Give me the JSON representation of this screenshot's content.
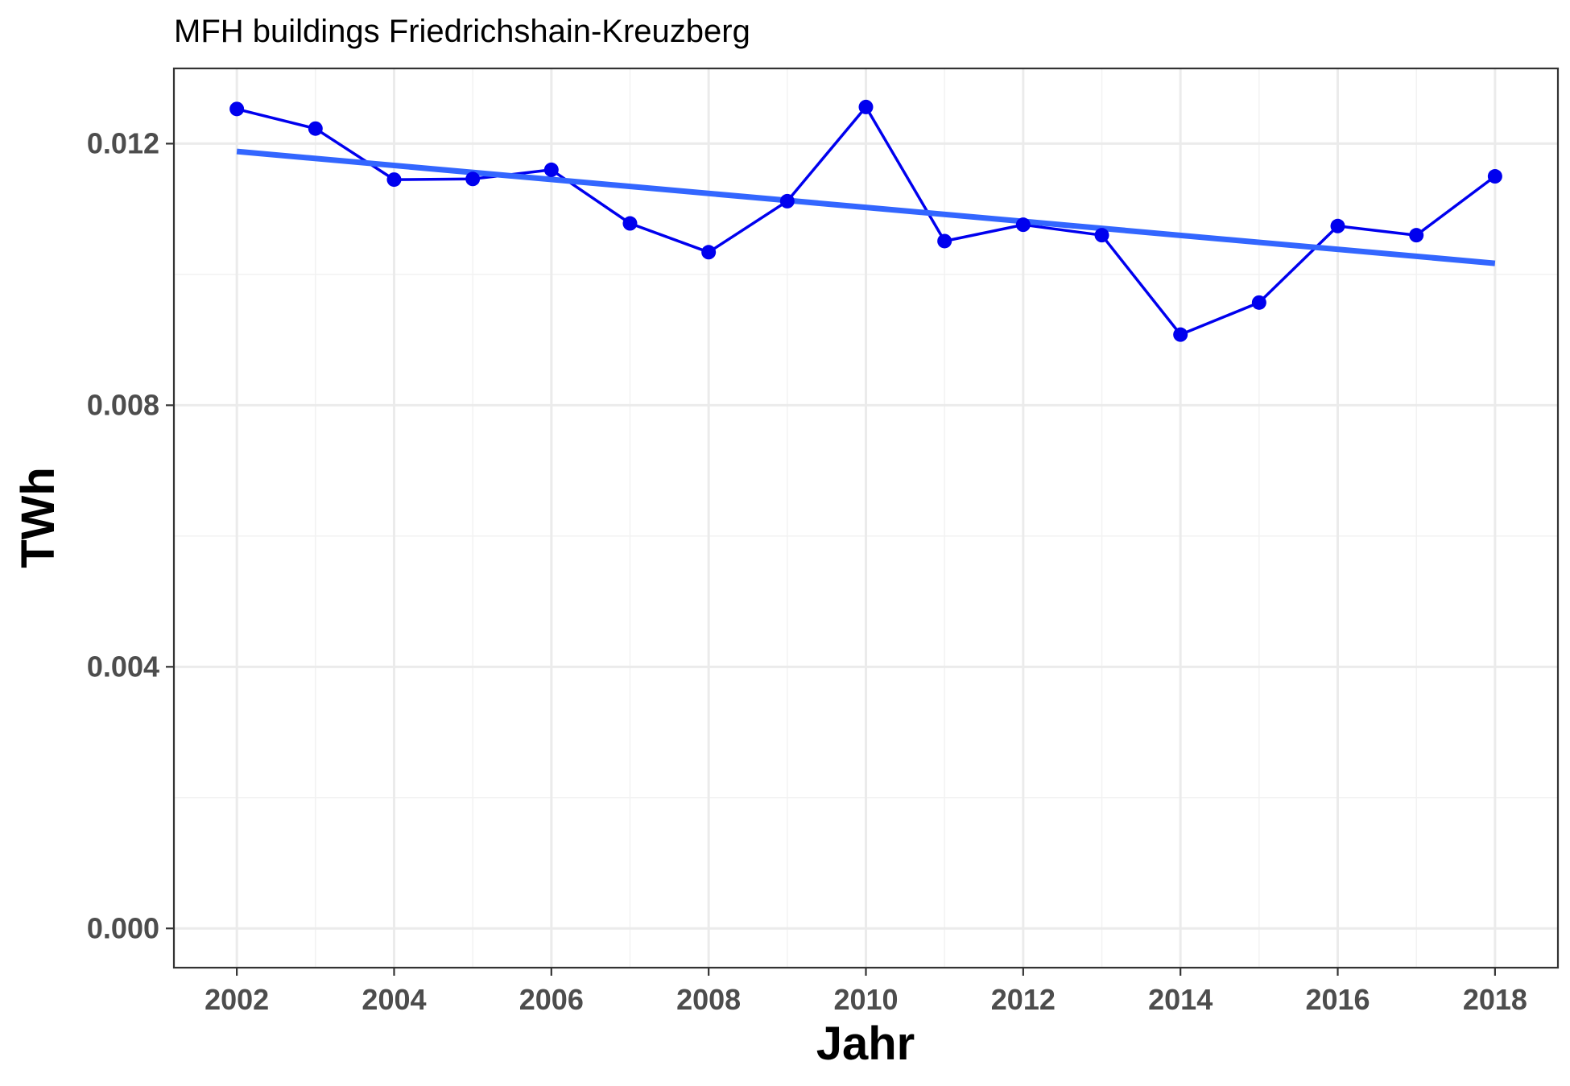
{
  "chart_data": {
    "type": "line",
    "title": "MFH buildings Friedrichshain-Kreuzberg",
    "xlabel": "Jahr",
    "ylabel": "TWh",
    "xlim": [
      2001.2,
      2018.8
    ],
    "ylim": [
      -0.0006,
      0.01315
    ],
    "x_ticks": [
      2002,
      2004,
      2006,
      2008,
      2010,
      2012,
      2014,
      2016,
      2018
    ],
    "x_tick_labels": [
      "2002",
      "2004",
      "2006",
      "2008",
      "2010",
      "2012",
      "2014",
      "2016",
      "2018"
    ],
    "y_ticks": [
      0.0,
      0.004,
      0.008,
      0.012
    ],
    "y_tick_labels": [
      "0.000",
      "0.004",
      "0.008",
      "0.012"
    ],
    "grid": true,
    "series": [
      {
        "type": "line+points",
        "color": "#0000ee",
        "x": [
          2002,
          2003,
          2004,
          2005,
          2006,
          2007,
          2008,
          2009,
          2010,
          2011,
          2012,
          2013,
          2014,
          2015,
          2016,
          2017,
          2018
        ],
        "y": [
          0.01253,
          0.01223,
          0.01145,
          0.01146,
          0.0116,
          0.01078,
          0.01034,
          0.01112,
          0.01256,
          0.01051,
          0.01076,
          0.0106,
          0.00908,
          0.00957,
          0.01074,
          0.0106,
          0.0115
        ]
      },
      {
        "type": "trend",
        "color": "#3366ff",
        "x": [
          2002,
          2018
        ],
        "y": [
          0.01188,
          0.01017
        ]
      }
    ]
  }
}
